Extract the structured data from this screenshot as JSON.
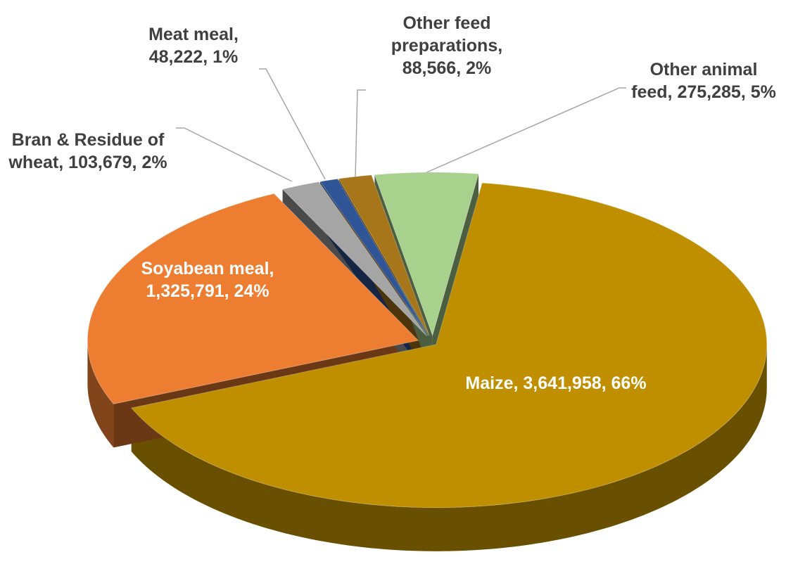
{
  "chart_data": {
    "type": "pie3d",
    "categories": [
      "Maize",
      "Soyabean meal",
      "Bran & Residue of wheat",
      "Meat meal",
      "Other feed preparations",
      "Other animal feed"
    ],
    "values": [
      3641958,
      1325791,
      103679,
      48222,
      88566,
      275285
    ],
    "value_labels": [
      "3,641,958",
      "1,325,791",
      "103,679",
      "48,222",
      "88,566",
      "275,285"
    ],
    "percents": [
      66,
      24,
      2,
      1,
      2,
      5
    ],
    "percent_labels": [
      "66%",
      "24%",
      "2%",
      "1%",
      "2%",
      "5%"
    ],
    "label_separator": ", ",
    "colors": [
      "#bf8f00",
      "#ed7d31",
      "#a5a5a5",
      "#2f5597",
      "#a8761a",
      "#a9d18e"
    ]
  }
}
